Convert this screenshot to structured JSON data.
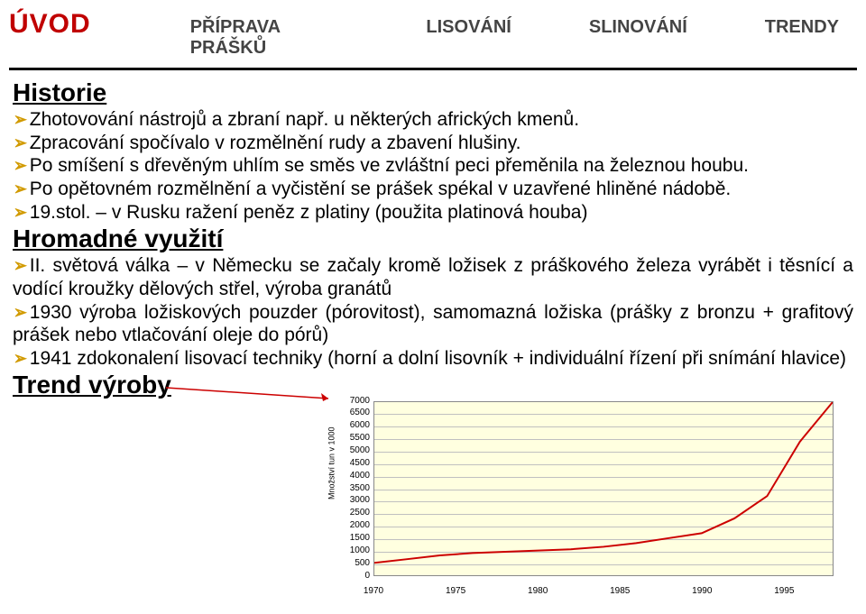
{
  "nav": {
    "heading": "ÚVOD",
    "items": [
      "PŘÍPRAVA PRÁŠKŮ",
      "LISOVÁNÍ",
      "SLINOVÁNÍ",
      "TRENDY"
    ]
  },
  "sections": {
    "historie_title": "Historie",
    "historie_bullets": [
      "Zhotovování nástrojů a zbraní např. u některých afrických kmenů.",
      "Zpracování spočívalo v rozmělnění rudy a zbavení hlušiny.",
      "Po smíšení s dřevěným uhlím se směs ve zvláštní peci přeměnila na železnou houbu.",
      "Po opětovném rozmělnění a vyčistění se prášek spékal v uzavřené hliněné nádobě.",
      "19.stol. – v Rusku ražení peněz z platiny (použita platinová houba)"
    ],
    "hromadne_title": "Hromadné využití",
    "hromadne_bullets": [
      "II. světová válka – v Německu se začaly kromě ložisek z práškového železa vyrábět i těsnící a vodící kroužky dělových střel, výroba granátů",
      "1930 výroba ložiskových pouzder (pórovitost), samomazná ložiska (prášky z bronzu + grafitový prášek nebo vtlačování oleje do pórů)",
      "1941 zdokonalení lisovací techniky (horní a dolní lisovník + individuální řízení při snímání hlavice)"
    ],
    "trend_title": "Trend výroby"
  },
  "chart": {
    "type": "line",
    "ylabel": "Množství tun v 1000",
    "background_color": "#ffffe0",
    "grid_color": "#c0c0c0",
    "border_color": "#888888",
    "line_color": "#cc0000",
    "line_width": 2,
    "title_fontsize": 10,
    "tick_fontsize": 10,
    "ylim": [
      0,
      7000
    ],
    "ytick_step": 500,
    "yticks": [
      0,
      500,
      1000,
      1500,
      2000,
      2500,
      3000,
      3500,
      4000,
      4500,
      5000,
      5500,
      6000,
      6500,
      7000
    ],
    "xlim": [
      1970,
      1998
    ],
    "xticks": [
      1970,
      1975,
      1980,
      1985,
      1990,
      1995
    ],
    "x": [
      1970,
      1972,
      1974,
      1976,
      1978,
      1980,
      1982,
      1984,
      1986,
      1988,
      1990,
      1992,
      1994,
      1996,
      1998
    ],
    "y": [
      500,
      650,
      800,
      900,
      950,
      1000,
      1050,
      1150,
      1300,
      1500,
      1700,
      2300,
      3200,
      5400,
      7000
    ]
  },
  "colors": {
    "accent_red": "#c00000",
    "nav_text": "#444444",
    "chevron": "#d19a00",
    "arrow": "#cc0000",
    "black": "#000000"
  }
}
